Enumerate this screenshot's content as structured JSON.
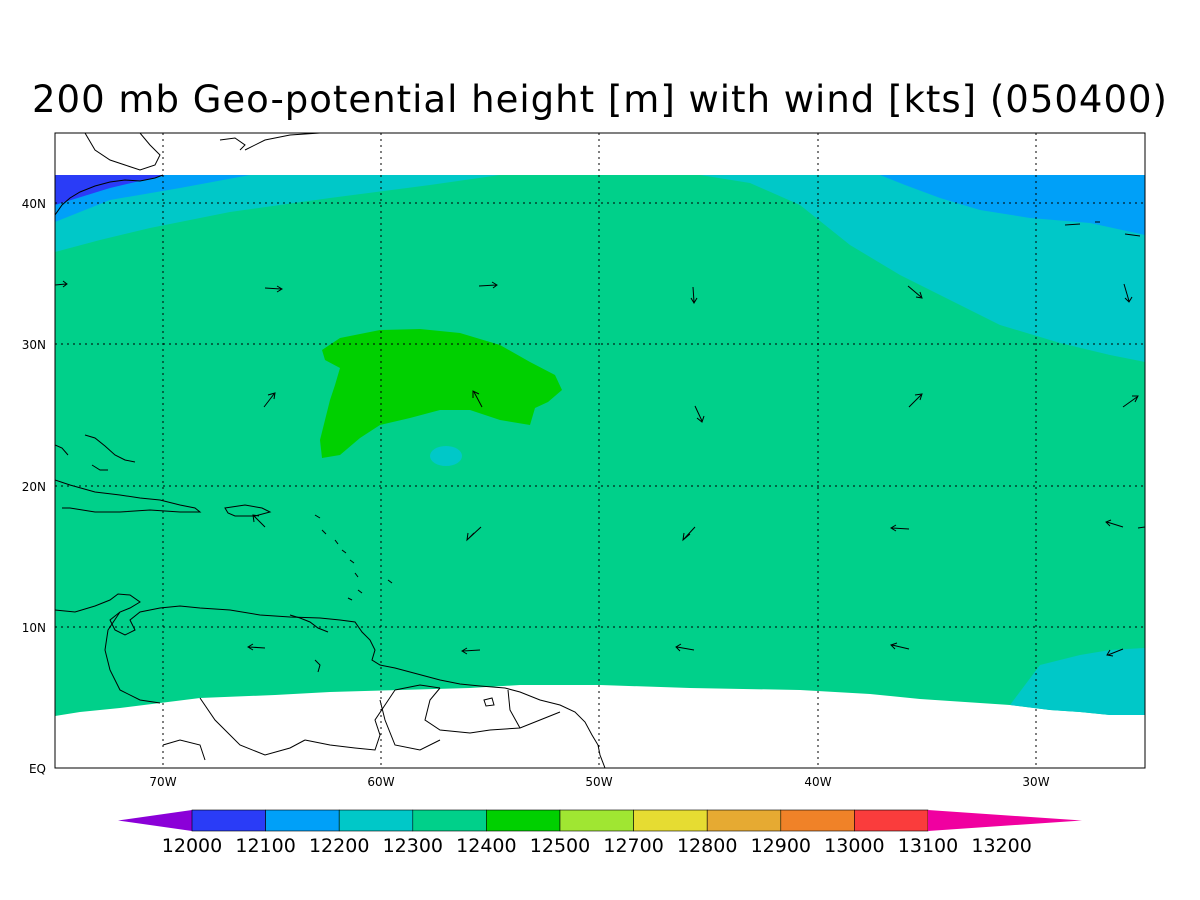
{
  "title": "200 mb Geo-potential height [m] with wind [kts] (050400)",
  "lon_labels": [
    "70W",
    "60W",
    "50W",
    "40W",
    "30W"
  ],
  "lat_labels": [
    "40N",
    "30N",
    "20N",
    "10N",
    "EQ"
  ],
  "colorbar": {
    "labels": [
      "12000",
      "12100",
      "12200",
      "12300",
      "12400",
      "12500",
      "12700",
      "12800",
      "12900",
      "13000",
      "13100",
      "13200"
    ],
    "colors": [
      "#8b00d8",
      "#2a3cf7",
      "#00a0f8",
      "#00c8c8",
      "#00d08a",
      "#00d000",
      "#a0e632",
      "#e6dc32",
      "#e6aa32",
      "#f08228",
      "#fa3c3c",
      "#f000a0"
    ]
  },
  "fill_colors": {
    "band_12200": "#2a3cf7",
    "band_12300": "#00a0f8",
    "band_12400": "#00c8c8",
    "band_12500": "#00d08a",
    "band_12700": "#00d000"
  }
}
